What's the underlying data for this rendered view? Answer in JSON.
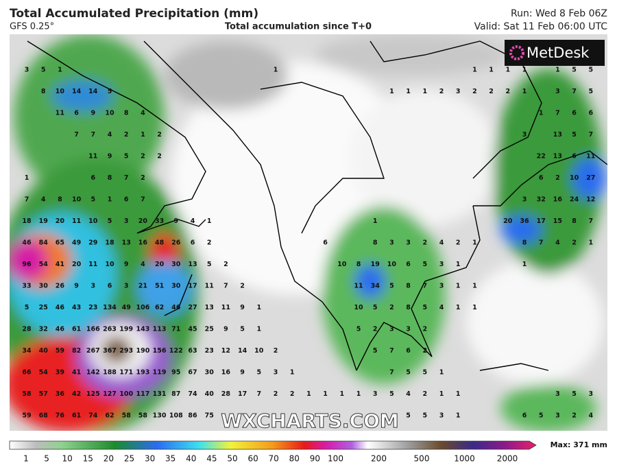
{
  "header": {
    "title": "Total Accumulated Precipitation (mm)",
    "model": "GFS 0.25°",
    "subtitle": "Total accumulation since T+0",
    "run": "Run: Wed 8 Feb 06Z",
    "valid": "Valid: Sat 11 Feb 06:00 UTC"
  },
  "logo": "MetDesk",
  "watermark": "WXCHARTS.COM",
  "grid": {
    "rows": [
      [
        3,
        5,
        1,
        null,
        null,
        null,
        null,
        null,
        null,
        null,
        null,
        null,
        null,
        null,
        null,
        1,
        null,
        null,
        null,
        null,
        null,
        null,
        null,
        null,
        null,
        null,
        null,
        1,
        1,
        1,
        1,
        null,
        1,
        5,
        5
      ],
      [
        null,
        8,
        10,
        14,
        14,
        5,
        null,
        null,
        null,
        null,
        null,
        null,
        null,
        null,
        null,
        null,
        null,
        null,
        null,
        null,
        null,
        null,
        1,
        1,
        1,
        2,
        3,
        2,
        2,
        2,
        1,
        null,
        3,
        7,
        5
      ],
      [
        null,
        null,
        11,
        6,
        9,
        10,
        8,
        4,
        null,
        null,
        null,
        null,
        null,
        null,
        null,
        null,
        null,
        null,
        null,
        null,
        null,
        null,
        null,
        null,
        null,
        null,
        null,
        null,
        null,
        null,
        null,
        1,
        7,
        6,
        6
      ],
      [
        null,
        null,
        null,
        7,
        7,
        4,
        2,
        1,
        2,
        null,
        null,
        null,
        null,
        null,
        null,
        null,
        null,
        null,
        null,
        null,
        null,
        null,
        null,
        null,
        null,
        null,
        null,
        null,
        null,
        null,
        3,
        null,
        13,
        5,
        7
      ],
      [
        null,
        null,
        null,
        null,
        11,
        9,
        5,
        2,
        2,
        null,
        null,
        null,
        null,
        null,
        null,
        null,
        null,
        null,
        null,
        null,
        null,
        null,
        null,
        null,
        null,
        null,
        null,
        null,
        null,
        null,
        null,
        22,
        13,
        6,
        11
      ],
      [
        1,
        null,
        null,
        null,
        6,
        8,
        7,
        2,
        null,
        null,
        null,
        null,
        null,
        null,
        null,
        null,
        null,
        null,
        null,
        null,
        null,
        null,
        null,
        null,
        null,
        null,
        null,
        null,
        null,
        null,
        null,
        6,
        2,
        10,
        27
      ],
      [
        7,
        4,
        8,
        10,
        5,
        1,
        6,
        7,
        null,
        null,
        null,
        null,
        null,
        null,
        null,
        null,
        null,
        null,
        null,
        null,
        null,
        null,
        null,
        null,
        null,
        null,
        null,
        null,
        null,
        null,
        3,
        32,
        16,
        24,
        12
      ],
      [
        18,
        19,
        20,
        11,
        10,
        5,
        3,
        20,
        33,
        9,
        4,
        1,
        null,
        null,
        null,
        null,
        null,
        null,
        null,
        null,
        null,
        1,
        null,
        null,
        null,
        null,
        null,
        null,
        null,
        20,
        36,
        17,
        15,
        8,
        7
      ],
      [
        46,
        84,
        65,
        49,
        29,
        18,
        13,
        16,
        48,
        26,
        6,
        2,
        null,
        null,
        null,
        null,
        null,
        null,
        6,
        null,
        null,
        8,
        3,
        3,
        2,
        4,
        2,
        1,
        null,
        null,
        8,
        7,
        4,
        2,
        1
      ],
      [
        96,
        54,
        41,
        20,
        11,
        10,
        9,
        4,
        20,
        30,
        13,
        5,
        2,
        null,
        null,
        null,
        null,
        null,
        null,
        10,
        8,
        19,
        10,
        6,
        5,
        3,
        1,
        null,
        null,
        null,
        1,
        null,
        null,
        null,
        null
      ],
      [
        33,
        30,
        26,
        9,
        3,
        6,
        3,
        21,
        51,
        30,
        17,
        11,
        7,
        2,
        null,
        null,
        null,
        null,
        null,
        null,
        11,
        34,
        5,
        8,
        7,
        3,
        1,
        1,
        null,
        null,
        null,
        null,
        null,
        null,
        null
      ],
      [
        5,
        25,
        46,
        43,
        23,
        134,
        49,
        106,
        62,
        46,
        27,
        13,
        11,
        9,
        1,
        null,
        null,
        null,
        null,
        null,
        10,
        5,
        2,
        8,
        5,
        4,
        1,
        1,
        null,
        null,
        null,
        null,
        null,
        null,
        null
      ],
      [
        28,
        32,
        46,
        61,
        166,
        263,
        199,
        143,
        113,
        71,
        45,
        25,
        9,
        5,
        1,
        null,
        null,
        null,
        null,
        null,
        5,
        2,
        3,
        3,
        2,
        null,
        null,
        null,
        null,
        null,
        null,
        null,
        null,
        null,
        null
      ],
      [
        34,
        40,
        59,
        82,
        267,
        367,
        293,
        190,
        156,
        122,
        63,
        23,
        12,
        14,
        10,
        2,
        null,
        null,
        null,
        null,
        null,
        5,
        7,
        6,
        2,
        null,
        null,
        null,
        null,
        null,
        null,
        null,
        null,
        null,
        null
      ],
      [
        66,
        54,
        39,
        41,
        142,
        188,
        171,
        193,
        119,
        95,
        67,
        30,
        16,
        9,
        5,
        3,
        1,
        null,
        null,
        null,
        null,
        null,
        7,
        5,
        5,
        1,
        null,
        null,
        null,
        null,
        null,
        null,
        null,
        null,
        null
      ],
      [
        58,
        57,
        36,
        42,
        125,
        127,
        100,
        117,
        131,
        87,
        74,
        40,
        28,
        17,
        7,
        2,
        2,
        1,
        1,
        1,
        1,
        3,
        5,
        4,
        2,
        1,
        1,
        null,
        null,
        null,
        null,
        null,
        3,
        5,
        3
      ],
      [
        59,
        68,
        76,
        61,
        74,
        62,
        58,
        58,
        130,
        108,
        86,
        75,
        null,
        null,
        null,
        null,
        null,
        null,
        null,
        null,
        null,
        null,
        null,
        5,
        5,
        3,
        1,
        null,
        null,
        null,
        6,
        5,
        3,
        2,
        4
      ]
    ]
  },
  "colorbar": {
    "ticks": [
      1,
      5,
      10,
      15,
      20,
      25,
      30,
      35,
      40,
      45,
      50,
      60,
      70,
      80,
      90,
      100,
      200,
      500,
      1000,
      2000
    ],
    "max_label": "Max: 371 mm"
  }
}
